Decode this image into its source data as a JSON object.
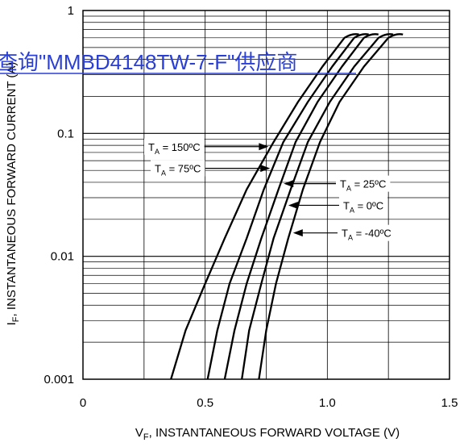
{
  "chart_data": {
    "type": "line",
    "xlabel": "V",
    "xlabel_sub": "F",
    "xlabel_rest": ", INSTANTANEOUS FORWARD VOLTAGE (V)",
    "ylabel": "I",
    "ylabel_sub": "F",
    "ylabel_rest": ", INSTANTANEOUS FORWARD CURRENT (A)",
    "xlim": [
      0,
      1.5
    ],
    "ylim": [
      0.001,
      1
    ],
    "yscale": "log",
    "grid": true,
    "x_ticks": [
      {
        "value": 0,
        "label": "0"
      },
      {
        "value": 0.5,
        "label": "0.5"
      },
      {
        "value": 1.0,
        "label": "1.0"
      },
      {
        "value": 1.5,
        "label": "1.5"
      }
    ],
    "y_ticks": [
      {
        "value": 1,
        "label": "1"
      },
      {
        "value": 0.1,
        "label": "0.1"
      },
      {
        "value": 0.01,
        "label": "0.01"
      },
      {
        "value": 0.001,
        "label": "0.001"
      }
    ],
    "series": [
      {
        "name": "T_A = 150ºC",
        "label": "T",
        "sub": "A",
        "rest": " = 150ºC",
        "x": [
          0.36,
          0.42,
          0.5,
          0.58,
          0.67,
          0.78,
          0.88,
          0.98,
          1.07
        ],
        "y": [
          0.001,
          0.0025,
          0.006,
          0.014,
          0.035,
          0.085,
          0.18,
          0.35,
          0.6
        ]
      },
      {
        "name": "T_A = 75ºC",
        "label": "T",
        "sub": "A",
        "rest": " = 75ºC",
        "x": [
          0.51,
          0.55,
          0.6,
          0.67,
          0.74,
          0.82,
          0.92,
          1.02,
          1.11
        ],
        "y": [
          0.001,
          0.0025,
          0.006,
          0.014,
          0.035,
          0.085,
          0.18,
          0.35,
          0.6
        ]
      },
      {
        "name": "T_A = 25ºC",
        "label": "T",
        "sub": "A",
        "rest": " = 25ºC",
        "x": [
          0.58,
          0.62,
          0.67,
          0.73,
          0.8,
          0.87,
          0.96,
          1.06,
          1.15
        ],
        "y": [
          0.001,
          0.0025,
          0.006,
          0.014,
          0.035,
          0.085,
          0.18,
          0.35,
          0.6
        ]
      },
      {
        "name": "T_A = 0ºC",
        "label": "T",
        "sub": "A",
        "rest": " = 0ºC",
        "x": [
          0.65,
          0.68,
          0.73,
          0.78,
          0.85,
          0.92,
          1.01,
          1.11,
          1.21
        ],
        "y": [
          0.001,
          0.0025,
          0.006,
          0.014,
          0.035,
          0.085,
          0.18,
          0.35,
          0.6
        ]
      },
      {
        "name": "T_A = -40ºC",
        "label": "T",
        "sub": "A",
        "rest": " = -40ºC",
        "x": [
          0.72,
          0.75,
          0.79,
          0.84,
          0.9,
          0.97,
          1.05,
          1.15,
          1.25
        ],
        "y": [
          0.001,
          0.0025,
          0.006,
          0.014,
          0.035,
          0.085,
          0.18,
          0.35,
          0.6
        ]
      }
    ]
  },
  "watermark": "查询\"MMBD4148TW-7-F\"供应商"
}
